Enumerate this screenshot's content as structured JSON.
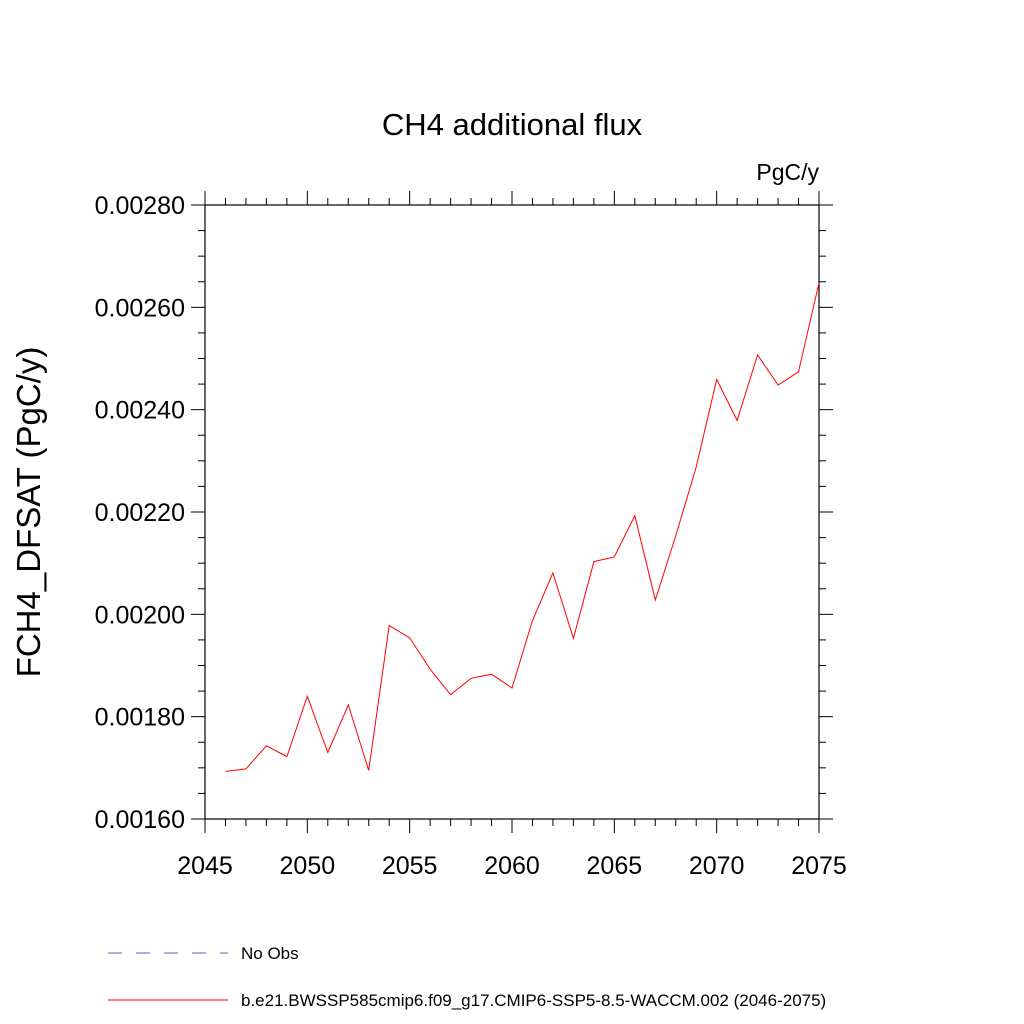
{
  "chart_data": {
    "type": "line",
    "title": "CH4 additional flux",
    "units_label": "PgC/y",
    "xlabel": "",
    "ylabel": "FCH4_DFSAT  (PgC/y)",
    "xlim": [
      2045,
      2075
    ],
    "ylim": [
      0.0016,
      0.0028
    ],
    "x_ticks": [
      2045,
      2050,
      2055,
      2060,
      2065,
      2070,
      2075
    ],
    "x_tick_labels": [
      "2045",
      "2050",
      "2055",
      "2060",
      "2065",
      "2070",
      "2075"
    ],
    "y_ticks": [
      0.0016,
      0.0018,
      0.002,
      0.0022,
      0.0024,
      0.0026,
      0.0028
    ],
    "y_tick_labels": [
      "0.00160",
      "0.00180",
      "0.00200",
      "0.00220",
      "0.00240",
      "0.00260",
      "0.00280"
    ],
    "grid": false,
    "legend_position": "bottom",
    "series": [
      {
        "name": "b.e21.BWSSP585cmip6.f09_g17.CMIP6-SSP5-8.5-WACCM.002 (2046-2075)",
        "color": "#ff0000",
        "style": "solid",
        "x": [
          2046,
          2047,
          2048,
          2049,
          2050,
          2051,
          2052,
          2053,
          2054,
          2055,
          2056,
          2057,
          2058,
          2059,
          2060,
          2061,
          2062,
          2063,
          2064,
          2065,
          2066,
          2067,
          2068,
          2069,
          2070,
          2071,
          2072,
          2073,
          2074,
          2075
        ],
        "values": [
          0.001693,
          0.001698,
          0.001743,
          0.001722,
          0.00184,
          0.00173,
          0.001823,
          0.001695,
          0.001978,
          0.001954,
          0.001893,
          0.001843,
          0.001875,
          0.001883,
          0.001856,
          0.001988,
          0.002081,
          0.001953,
          0.002103,
          0.002112,
          0.002193,
          0.002028,
          0.002153,
          0.002288,
          0.002459,
          0.002379,
          0.002507,
          0.002448,
          0.002474,
          0.002648
        ]
      }
    ],
    "legend": [
      {
        "label": "No Obs",
        "color": "#6a5acd",
        "style": "dashed"
      },
      {
        "label": "b.e21.BWSSP585cmip6.f09_g17.CMIP6-SSP5-8.5-WACCM.002 (2046-2075)",
        "color": "#ff0000",
        "style": "solid"
      }
    ]
  }
}
